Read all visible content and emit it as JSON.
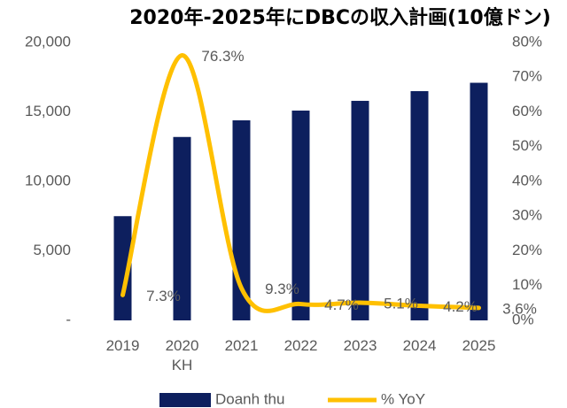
{
  "chart_data": {
    "type": "bar+line",
    "title": "2020年-2025年にDBCの収入計画(10億ドン)",
    "categories": [
      "2019",
      "2020 KH",
      "2021",
      "2022",
      "2023",
      "2024",
      "2025"
    ],
    "series": [
      {
        "name": "Doanh thu",
        "color": "#0d1f5e",
        "values": [
          7500,
          13200,
          14400,
          15100,
          15800,
          16500,
          17100
        ]
      },
      {
        "name": "% YoY",
        "color": "#ffc000",
        "axis": "y2",
        "values": [
          7.3,
          76.3,
          9.3,
          4.7,
          5.1,
          4.2,
          3.6
        ],
        "value_labels": [
          "7.3%",
          "76.3%",
          "9.3%",
          "4.7%",
          "5.1%",
          "4.2%",
          "3.6%"
        ]
      }
    ],
    "ylim": [
      0,
      20000
    ],
    "yticks": [
      {
        "value": 0,
        "label": "-"
      },
      {
        "value": 5000,
        "label": "5,000"
      },
      {
        "value": 10000,
        "label": "10,000"
      },
      {
        "value": 15000,
        "label": "15,000"
      },
      {
        "value": 20000,
        "label": "20,000"
      }
    ],
    "y2lim": [
      0,
      80
    ],
    "y2ticks": [
      {
        "value": 0,
        "label": "0%"
      },
      {
        "value": 10,
        "label": "10%"
      },
      {
        "value": 20,
        "label": "20%"
      },
      {
        "value": 30,
        "label": "30%"
      },
      {
        "value": 40,
        "label": "40%"
      },
      {
        "value": 50,
        "label": "50%"
      },
      {
        "value": 60,
        "label": "60%"
      },
      {
        "value": 70,
        "label": "70%"
      },
      {
        "value": 80,
        "label": "80%"
      }
    ],
    "legend": "bottom"
  }
}
